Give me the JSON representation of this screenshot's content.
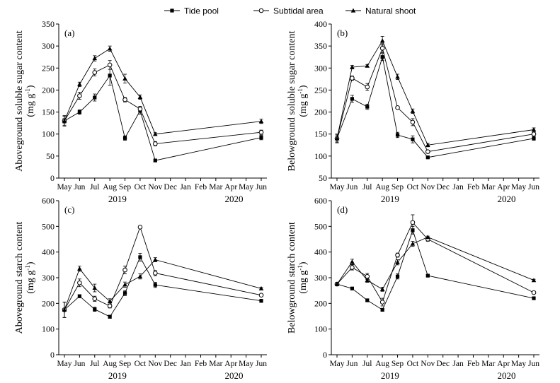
{
  "legend": [
    {
      "name": "Tide pool",
      "marker": "square",
      "dash": "none"
    },
    {
      "name": "Subtidal area",
      "marker": "circle",
      "dash": "none"
    },
    {
      "name": "Natural shoot",
      "marker": "triangle",
      "dash": "none"
    }
  ],
  "x_axis": {
    "months": [
      "May",
      "Jun",
      "Jul",
      "Aug",
      "Sep",
      "Oct",
      "Nov",
      "Dec",
      "Jan",
      "Feb",
      "Mar",
      "Apr",
      "May",
      "Jun"
    ],
    "years": [
      "2019",
      "2020"
    ]
  },
  "chart_data": [
    {
      "type": "line",
      "panel": "(a)",
      "ylabel_line1": "Aboveground soluble sugar content",
      "ylabel_line2": "(mg g",
      "ylabel_sup": "-1",
      "ylabel_close": ")",
      "ylim": [
        0,
        350
      ],
      "yticks": [
        "0",
        "50",
        "100",
        "150",
        "200",
        "250",
        "300",
        "350"
      ],
      "series": [
        {
          "name": "Tide pool",
          "x": [
            0,
            1,
            2,
            3,
            4,
            5,
            6,
            13
          ],
          "values": [
            130,
            150,
            183,
            233,
            91,
            153,
            40,
            92
          ],
          "err": [
            5,
            5,
            8,
            22,
            5,
            8,
            2,
            5
          ]
        },
        {
          "name": "Subtidal area",
          "x": [
            0,
            1,
            2,
            3,
            4,
            5,
            6,
            13
          ],
          "values": [
            130,
            187,
            240,
            257,
            178,
            157,
            78,
            104
          ],
          "err": [
            12,
            8,
            8,
            10,
            5,
            6,
            5,
            5
          ]
        },
        {
          "name": "Natural shoot",
          "x": [
            0,
            1,
            2,
            3,
            4,
            5,
            6,
            13
          ],
          "values": [
            130,
            213,
            272,
            294,
            226,
            184,
            100,
            129
          ],
          "err": [
            10,
            5,
            6,
            6,
            10,
            5,
            3,
            5
          ]
        }
      ]
    },
    {
      "type": "line",
      "panel": "(b)",
      "ylabel_line1": "Belowground soluble sugar content",
      "ylabel_line2": "(mg g",
      "ylabel_sup": "-1",
      "ylabel_close": ")",
      "ylim": [
        50,
        400
      ],
      "yticks": [
        "50",
        "100",
        "150",
        "200",
        "250",
        "300",
        "350",
        "400"
      ],
      "series": [
        {
          "name": "Tide pool",
          "x": [
            0,
            1,
            2,
            3,
            4,
            5,
            6,
            13
          ],
          "values": [
            140,
            230,
            212,
            325,
            148,
            138,
            97,
            140
          ],
          "err": [
            10,
            8,
            6,
            8,
            6,
            8,
            3,
            4
          ]
        },
        {
          "name": "Subtidal area",
          "x": [
            0,
            1,
            2,
            3,
            4,
            5,
            6,
            13
          ],
          "values": [
            140,
            277,
            257,
            345,
            210,
            177,
            110,
            150
          ],
          "err": [
            8,
            5,
            8,
            10,
            3,
            8,
            3,
            4
          ]
        },
        {
          "name": "Natural shoot",
          "x": [
            0,
            1,
            2,
            3,
            4,
            5,
            6,
            13
          ],
          "values": [
            140,
            302,
            305,
            362,
            280,
            202,
            125,
            160
          ],
          "err": [
            8,
            4,
            3,
            10,
            6,
            5,
            4,
            4
          ]
        }
      ]
    },
    {
      "type": "line",
      "panel": "(c)",
      "ylabel_line1": "Aboveground starch content",
      "ylabel_line2": "(mg g",
      "ylabel_sup": "-1",
      "ylabel_close": ")",
      "ylim": [
        0,
        600
      ],
      "yticks": [
        "0",
        "100",
        "200",
        "300",
        "400",
        "500",
        "600"
      ],
      "series": [
        {
          "name": "Tide pool",
          "x": [
            0,
            1,
            2,
            3,
            4,
            5,
            6,
            13
          ],
          "values": [
            175,
            228,
            177,
            148,
            240,
            380,
            272,
            210
          ],
          "err": [
            30,
            6,
            8,
            6,
            10,
            15,
            10,
            6
          ]
        },
        {
          "name": "Subtidal area",
          "x": [
            0,
            1,
            2,
            3,
            4,
            5,
            6,
            13
          ],
          "values": [
            175,
            280,
            218,
            190,
            330,
            497,
            318,
            232
          ],
          "err": [
            30,
            15,
            10,
            8,
            15,
            4,
            10,
            5
          ]
        },
        {
          "name": "Natural shoot",
          "x": [
            0,
            1,
            2,
            3,
            4,
            5,
            6,
            13
          ],
          "values": [
            175,
            335,
            260,
            208,
            273,
            305,
            370,
            258
          ],
          "err": [
            30,
            10,
            15,
            10,
            10,
            10,
            8,
            4
          ]
        }
      ]
    },
    {
      "type": "line",
      "panel": "(d)",
      "ylabel_line1": "Belowground starch content",
      "ylabel_line2": "(mg g",
      "ylabel_sup": "-1",
      "ylabel_close": ")",
      "ylim": [
        0,
        600
      ],
      "yticks": [
        "0",
        "100",
        "200",
        "300",
        "400",
        "500",
        "600"
      ],
      "series": [
        {
          "name": "Tide pool",
          "x": [
            0,
            1,
            2,
            3,
            4,
            5,
            6,
            13
          ],
          "values": [
            275,
            258,
            212,
            175,
            305,
            485,
            308,
            220
          ],
          "err": [
            5,
            5,
            5,
            5,
            10,
            15,
            4,
            4
          ]
        },
        {
          "name": "Subtidal area",
          "x": [
            0,
            1,
            2,
            3,
            4,
            5,
            6,
            13
          ],
          "values": [
            275,
            340,
            305,
            205,
            388,
            515,
            450,
            242
          ],
          "err": [
            5,
            10,
            12,
            15,
            8,
            30,
            8,
            4
          ]
        },
        {
          "name": "Natural shoot",
          "x": [
            0,
            1,
            2,
            3,
            4,
            5,
            6,
            13
          ],
          "values": [
            275,
            362,
            290,
            255,
            360,
            432,
            458,
            290
          ],
          "err": [
            5,
            10,
            8,
            8,
            10,
            10,
            4,
            4
          ]
        }
      ]
    }
  ]
}
